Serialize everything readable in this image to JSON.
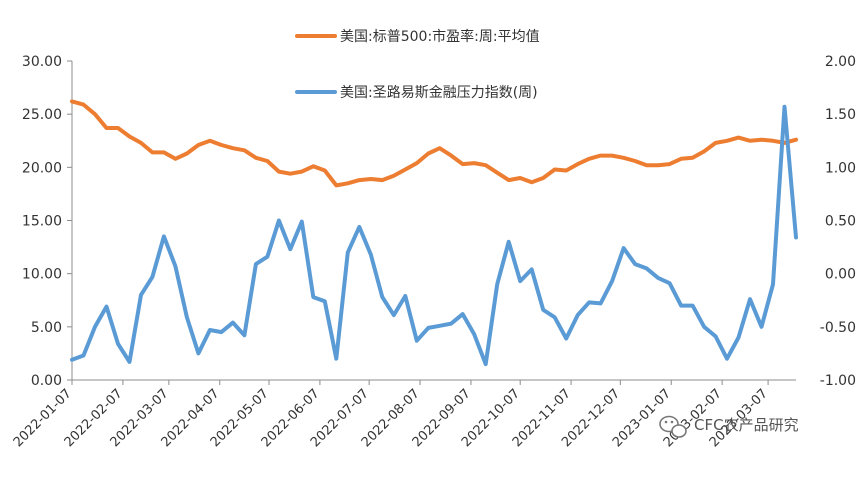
{
  "chart_data": {
    "type": "line",
    "grid": false,
    "legend_placement": "top-center",
    "y_left": {
      "range": [
        0,
        30
      ],
      "ticks": [
        "0.00",
        "5.00",
        "10.00",
        "15.00",
        "20.00",
        "25.00",
        "30.00"
      ]
    },
    "y_right": {
      "range": [
        -1,
        2
      ],
      "ticks": [
        "-1.00",
        "-0.50",
        "0.00",
        "0.50",
        "1.00",
        "1.50",
        "2.00"
      ]
    },
    "x_ticks": [
      "2022-01-07",
      "2022-02-07",
      "2022-03-07",
      "2022-04-07",
      "2022-05-07",
      "2022-06-07",
      "2022-07-07",
      "2022-08-07",
      "2022-09-07",
      "2022-10-07",
      "2022-11-07",
      "2022-12-07",
      "2023-01-07",
      "2023-02-07",
      "2023-03-07"
    ],
    "x_range": [
      "2022-01-07",
      "2023-03-24"
    ],
    "series": [
      {
        "name": "美国:标普500:市盈率:周:平均值",
        "axis": "left",
        "color": "#ED7D31",
        "dates": [
          "2022-01-07",
          "2022-01-14",
          "2022-01-21",
          "2022-01-28",
          "2022-02-04",
          "2022-02-11",
          "2022-02-18",
          "2022-02-25",
          "2022-03-04",
          "2022-03-11",
          "2022-03-18",
          "2022-03-25",
          "2022-04-01",
          "2022-04-08",
          "2022-04-15",
          "2022-04-22",
          "2022-04-29",
          "2022-05-06",
          "2022-05-13",
          "2022-05-20",
          "2022-05-27",
          "2022-06-03",
          "2022-06-10",
          "2022-06-17",
          "2022-06-24",
          "2022-07-01",
          "2022-07-08",
          "2022-07-15",
          "2022-07-22",
          "2022-07-29",
          "2022-08-05",
          "2022-08-12",
          "2022-08-19",
          "2022-08-26",
          "2022-09-02",
          "2022-09-09",
          "2022-09-16",
          "2022-09-23",
          "2022-09-30",
          "2022-10-07",
          "2022-10-14",
          "2022-10-21",
          "2022-10-28",
          "2022-11-04",
          "2022-11-11",
          "2022-11-18",
          "2022-11-25",
          "2022-12-02",
          "2022-12-09",
          "2022-12-16",
          "2022-12-23",
          "2022-12-30",
          "2023-01-06",
          "2023-01-13",
          "2023-01-20",
          "2023-01-27",
          "2023-02-03",
          "2023-02-10",
          "2023-02-17",
          "2023-02-24",
          "2023-03-03",
          "2023-03-10",
          "2023-03-17",
          "2023-03-24"
        ],
        "values": [
          26.2,
          25.9,
          25.0,
          23.7,
          23.7,
          22.9,
          22.3,
          21.4,
          21.4,
          20.8,
          21.3,
          22.1,
          22.5,
          22.1,
          21.8,
          21.6,
          20.9,
          20.6,
          19.6,
          19.4,
          19.6,
          20.1,
          19.7,
          18.3,
          18.5,
          18.8,
          18.9,
          18.8,
          19.2,
          19.8,
          20.4,
          21.3,
          21.8,
          21.1,
          20.3,
          20.4,
          20.2,
          19.5,
          18.8,
          19.0,
          18.6,
          19.0,
          19.8,
          19.7,
          20.3,
          20.8,
          21.1,
          21.1,
          20.9,
          20.6,
          20.2,
          20.2,
          20.3,
          20.8,
          20.9,
          21.5,
          22.3,
          22.5,
          22.8,
          22.5,
          22.6,
          22.5,
          22.3,
          22.6
        ]
      },
      {
        "name": "美国:圣路易斯金融压力指数(周)",
        "axis": "right",
        "color": "#5B9BD5",
        "dates": [
          "2022-01-07",
          "2022-01-14",
          "2022-01-21",
          "2022-01-28",
          "2022-02-04",
          "2022-02-11",
          "2022-02-18",
          "2022-02-25",
          "2022-03-04",
          "2022-03-11",
          "2022-03-18",
          "2022-03-25",
          "2022-04-01",
          "2022-04-08",
          "2022-04-15",
          "2022-04-22",
          "2022-04-29",
          "2022-05-06",
          "2022-05-13",
          "2022-05-20",
          "2022-05-27",
          "2022-06-03",
          "2022-06-10",
          "2022-06-17",
          "2022-06-24",
          "2022-07-01",
          "2022-07-08",
          "2022-07-15",
          "2022-07-22",
          "2022-07-29",
          "2022-08-05",
          "2022-08-12",
          "2022-08-19",
          "2022-08-26",
          "2022-09-02",
          "2022-09-09",
          "2022-09-16",
          "2022-09-23",
          "2022-09-30",
          "2022-10-07",
          "2022-10-14",
          "2022-10-21",
          "2022-10-28",
          "2022-11-04",
          "2022-11-11",
          "2022-11-18",
          "2022-11-25",
          "2022-12-02",
          "2022-12-09",
          "2022-12-16",
          "2022-12-23",
          "2022-12-30",
          "2023-01-06",
          "2023-01-13",
          "2023-01-20",
          "2023-01-27",
          "2023-02-03",
          "2023-02-10",
          "2023-02-17",
          "2023-02-24",
          "2023-03-03",
          "2023-03-10",
          "2023-03-17",
          "2023-03-24"
        ],
        "values": [
          -0.81,
          -0.77,
          -0.5,
          -0.31,
          -0.66,
          -0.83,
          -0.2,
          -0.03,
          0.35,
          0.07,
          -0.41,
          -0.75,
          -0.53,
          -0.55,
          -0.46,
          -0.58,
          0.09,
          0.16,
          0.5,
          0.23,
          0.49,
          -0.22,
          -0.26,
          -0.8,
          0.2,
          0.44,
          0.18,
          -0.22,
          -0.39,
          -0.21,
          -0.63,
          -0.51,
          -0.49,
          -0.47,
          -0.38,
          -0.57,
          -0.85,
          -0.1,
          0.3,
          -0.07,
          0.04,
          -0.34,
          -0.41,
          -0.61,
          -0.39,
          -0.27,
          -0.28,
          -0.07,
          0.24,
          0.09,
          0.05,
          -0.04,
          -0.09,
          -0.3,
          -0.3,
          -0.5,
          -0.59,
          -0.8,
          -0.6,
          -0.24,
          -0.5,
          -0.1,
          1.57,
          0.34
        ]
      }
    ]
  },
  "watermark": {
    "text": "CFC农产品研究",
    "icon": "wechat-icon"
  }
}
